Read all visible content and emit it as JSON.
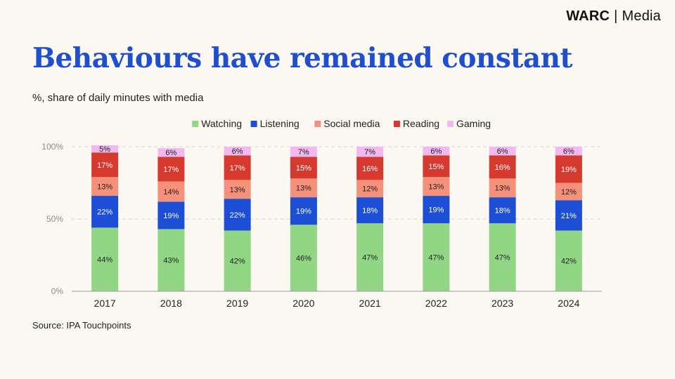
{
  "brand": {
    "name": "WARC",
    "separator": "|",
    "section": "Media"
  },
  "title": "Behaviours have remained constant",
  "subtitle": "%, share of daily minutes with media",
  "source": "Source: IPA Touchpoints",
  "colors": {
    "background": "#faf8f0",
    "title": "#1f4fcf",
    "Watching": "#90d685",
    "Listening": "#1c4fd6",
    "Social media": "#f5907a",
    "Reading": "#d63a2e",
    "Gaming": "#f3b8ef",
    "grid": "#d8d8d8",
    "axis": "#9a9a9a"
  },
  "chart_data": {
    "type": "bar",
    "stacked": true,
    "categories": [
      "2017",
      "2018",
      "2019",
      "2020",
      "2021",
      "2022",
      "2023",
      "2024"
    ],
    "series": [
      {
        "name": "Watching",
        "values": [
          44,
          43,
          42,
          46,
          47,
          47,
          47,
          42
        ]
      },
      {
        "name": "Listening",
        "values": [
          22,
          19,
          22,
          19,
          18,
          19,
          18,
          21
        ]
      },
      {
        "name": "Social media",
        "values": [
          13,
          14,
          13,
          13,
          12,
          13,
          13,
          12
        ]
      },
      {
        "name": "Reading",
        "values": [
          17,
          17,
          17,
          15,
          16,
          15,
          16,
          19
        ]
      },
      {
        "name": "Gaming",
        "values": [
          5,
          6,
          6,
          7,
          7,
          6,
          6,
          6
        ]
      }
    ],
    "yticks": [
      "0%",
      "50%",
      "100%"
    ],
    "ytick_values": [
      0,
      50,
      100
    ],
    "ylim": [
      0,
      100
    ],
    "grid": true,
    "legend_position": "top-center",
    "value_suffix": "%"
  }
}
